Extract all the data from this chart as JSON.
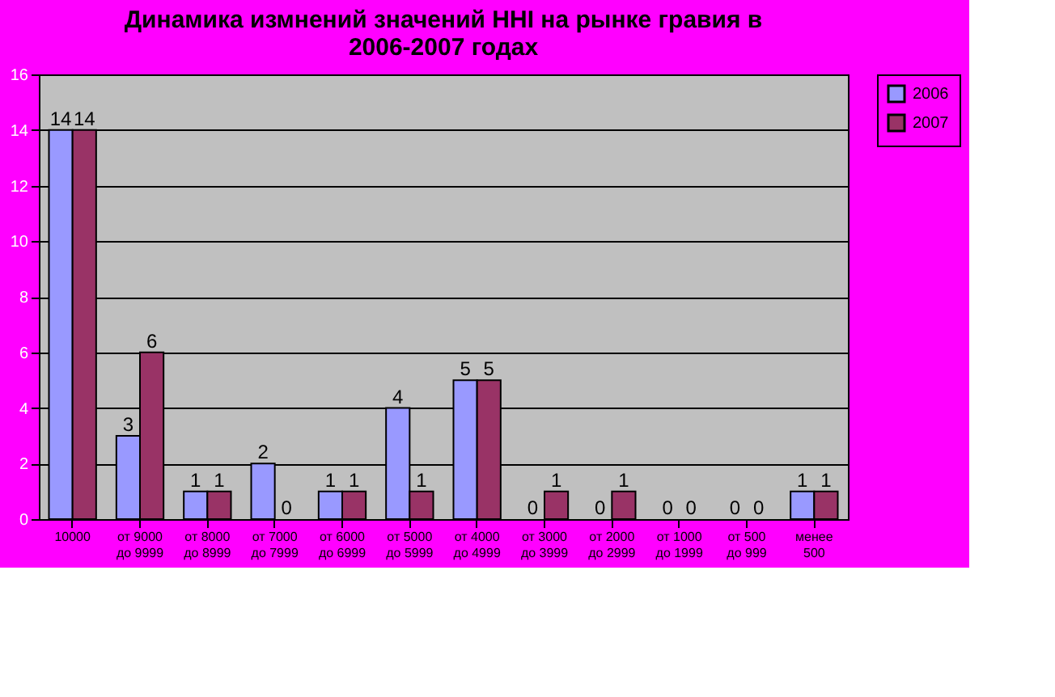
{
  "chart_data": {
    "type": "bar",
    "title": "Динамика измнений значений HHI на рынке гравия в\n2006-2007 годах",
    "categories": [
      "10000",
      "от 9000\nдо 9999",
      "от 8000\nдо 8999",
      "от 7000\nдо 7999",
      "от 6000\nдо 6999",
      "от 5000\nдо 5999",
      "от 4000\nдо 4999",
      "от 3000\nдо 3999",
      "от 2000\nдо 2999",
      "от 1000\nдо 1999",
      "от 500\nдо 999",
      "менее\n500"
    ],
    "series": [
      {
        "name": "2006",
        "color": "#9999ff",
        "values": [
          14,
          3,
          1,
          2,
          1,
          4,
          5,
          0,
          0,
          0,
          0,
          1
        ]
      },
      {
        "name": "2007",
        "color": "#993366",
        "values": [
          14,
          6,
          1,
          0,
          1,
          1,
          5,
          1,
          1,
          0,
          0,
          1
        ]
      }
    ],
    "ylim": [
      0,
      16
    ],
    "yticks": [
      0,
      2,
      4,
      6,
      8,
      10,
      12,
      14,
      16
    ],
    "grid": "y",
    "legend": "right",
    "data_labels": true
  }
}
